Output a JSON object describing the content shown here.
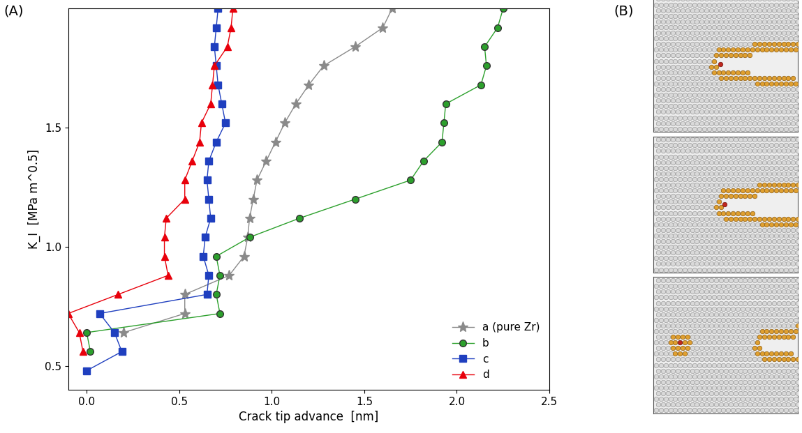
{
  "chart_data": {
    "type": "line",
    "x_label": "Crack tip advance  [nm]",
    "y_label": "K_I  [MPa m^0.5]",
    "xlim": [
      -0.1,
      2.5
    ],
    "ylim": [
      0.4,
      2.0
    ],
    "xticks": [
      {
        "value": 0.0,
        "label": "0.0"
      },
      {
        "value": 0.5,
        "label": "0.5"
      },
      {
        "value": 1.0,
        "label": "1.0"
      },
      {
        "value": 1.5,
        "label": "1.5"
      },
      {
        "value": 2.0,
        "label": "2.0"
      },
      {
        "value": 2.5,
        "label": "2.5"
      }
    ],
    "yticks": [
      {
        "value": 0.5,
        "label": "0.5"
      },
      {
        "value": 1.0,
        "label": "1.0"
      },
      {
        "value": 1.5,
        "label": "1.5"
      }
    ],
    "grid": false,
    "legend": "lower right",
    "series": [
      {
        "name": "a (pure Zr)",
        "color": "#8a8a8a",
        "marker": "star",
        "x": [
          0.2,
          0.53,
          0.53,
          0.77,
          0.85,
          0.87,
          0.88,
          0.9,
          0.92,
          0.97,
          1.02,
          1.07,
          1.13,
          1.2,
          1.28,
          1.45,
          1.6,
          1.65
        ],
        "values": [
          0.64,
          0.72,
          0.8,
          0.88,
          0.96,
          1.04,
          1.12,
          1.2,
          1.28,
          1.36,
          1.44,
          1.52,
          1.6,
          1.68,
          1.76,
          1.84,
          1.92,
          2.0
        ]
      },
      {
        "name": "b",
        "color": "#2ca02c",
        "marker": "circle",
        "x": [
          0.02,
          0.0,
          0.72,
          0.7,
          0.72,
          0.7,
          0.88,
          1.15,
          1.45,
          1.75,
          1.82,
          1.92,
          1.93,
          1.94,
          2.13,
          2.16,
          2.15,
          2.22,
          2.25
        ],
        "values": [
          0.56,
          0.64,
          0.72,
          0.8,
          0.88,
          0.96,
          1.04,
          1.12,
          1.2,
          1.28,
          1.36,
          1.44,
          1.52,
          1.6,
          1.68,
          1.76,
          1.84,
          1.92,
          2.0
        ]
      },
      {
        "name": "c",
        "color": "#1f3fbf",
        "marker": "square",
        "x": [
          0.0,
          0.19,
          0.15,
          0.07,
          0.65,
          0.66,
          0.63,
          0.64,
          0.67,
          0.66,
          0.65,
          0.66,
          0.7,
          0.75,
          0.73,
          0.71,
          0.7,
          0.69,
          0.7,
          0.71
        ],
        "values": [
          0.48,
          0.56,
          0.64,
          0.72,
          0.8,
          0.88,
          0.96,
          1.04,
          1.12,
          1.2,
          1.28,
          1.36,
          1.44,
          1.52,
          1.6,
          1.68,
          1.76,
          1.84,
          1.92,
          2.0
        ]
      },
      {
        "name": "d",
        "color": "#e8000b",
        "marker": "triangle",
        "x": [
          -0.02,
          -0.04,
          -0.1,
          0.17,
          0.44,
          0.42,
          0.42,
          0.43,
          0.53,
          0.53,
          0.57,
          0.61,
          0.62,
          0.67,
          0.68,
          0.69,
          0.76,
          0.78,
          0.79
        ],
        "values": [
          0.56,
          0.64,
          0.72,
          0.8,
          0.88,
          0.96,
          1.04,
          1.12,
          1.2,
          1.28,
          1.36,
          1.44,
          1.52,
          1.6,
          1.68,
          1.76,
          1.84,
          1.92,
          2.0
        ]
      }
    ]
  },
  "panel_labels": {
    "A": "(A)",
    "B": "(B)"
  }
}
